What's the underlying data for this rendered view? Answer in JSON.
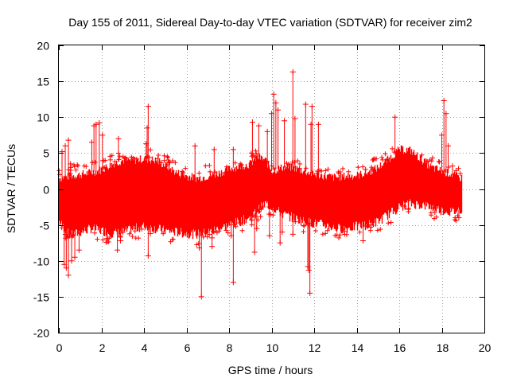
{
  "chart_data": {
    "type": "scatter",
    "title": "Day 155 of 2011, Sidereal Day-to-day VTEC variation (SDTVAR) for receiver zim2",
    "xlabel": "GPS time / hours",
    "ylabel": "SDTVAR / TECUs",
    "xlim": [
      0,
      20
    ],
    "ylim": [
      -20,
      20
    ],
    "xticks": [
      "0",
      "2",
      "4",
      "6",
      "8",
      "10",
      "12",
      "14",
      "16",
      "18",
      "20"
    ],
    "yticks": [
      "20",
      "15",
      "10",
      "5",
      "0",
      "-5",
      "-10",
      "-15",
      "-20"
    ],
    "grid": true,
    "marker": "+",
    "color": "#ff0000",
    "band": {
      "x": [
        0,
        0.5,
        1,
        1.5,
        2,
        2.5,
        3,
        3.5,
        4,
        4.5,
        5,
        5.5,
        6,
        6.5,
        7,
        7.5,
        8,
        8.5,
        9,
        9.3,
        9.7,
        10,
        10.5,
        11,
        11.5,
        12,
        12.5,
        13,
        13.5,
        14,
        14.5,
        15,
        15.5,
        16,
        16.5,
        17,
        17.5,
        18,
        18.5,
        18.9
      ],
      "upper": [
        1.5,
        1.8,
        2.0,
        2.3,
        2.7,
        3.5,
        4.0,
        4.0,
        4.2,
        4.0,
        3.3,
        2.3,
        1.8,
        1.5,
        1.8,
        2.2,
        2.8,
        3.2,
        3.5,
        4.5,
        4.0,
        2.5,
        3.0,
        3.0,
        2.5,
        2.0,
        1.8,
        1.6,
        1.8,
        1.9,
        2.3,
        3.0,
        4.2,
        5.5,
        5.4,
        4.2,
        3.0,
        2.5,
        2.0,
        1.5
      ],
      "lower": [
        -4.5,
        -6.5,
        -6.0,
        -5.5,
        -5.8,
        -6.2,
        -6.0,
        -5.5,
        -5.2,
        -5.5,
        -5.8,
        -6.0,
        -6.2,
        -6.3,
        -6.0,
        -5.5,
        -5.0,
        -4.5,
        -4.0,
        -3.0,
        -2.0,
        -2.5,
        -3.5,
        -4.0,
        -4.5,
        -4.8,
        -5.0,
        -5.5,
        -5.5,
        -5.2,
        -5.0,
        -4.5,
        -3.5,
        -2.5,
        -2.0,
        -2.2,
        -2.5,
        -3.0,
        -3.2,
        -2.8
      ]
    },
    "outliers": [
      {
        "x": 0.15,
        "y": 5.2
      },
      {
        "x": 0.3,
        "y": 6.0
      },
      {
        "x": 0.45,
        "y": 6.8
      },
      {
        "x": 0.55,
        "y": 3.5
      },
      {
        "x": 0.25,
        "y": -10.5
      },
      {
        "x": 0.35,
        "y": -11.0
      },
      {
        "x": 0.45,
        "y": -12.0
      },
      {
        "x": 0.6,
        "y": -10.0
      },
      {
        "x": 0.75,
        "y": -9.5
      },
      {
        "x": 0.95,
        "y": -8.5
      },
      {
        "x": 1.65,
        "y": 8.8
      },
      {
        "x": 1.75,
        "y": 9.0
      },
      {
        "x": 1.9,
        "y": 9.2
      },
      {
        "x": 1.55,
        "y": 6.5
      },
      {
        "x": 2.05,
        "y": 7.5
      },
      {
        "x": 2.8,
        "y": 7.0
      },
      {
        "x": 2.75,
        "y": -8.5
      },
      {
        "x": 2.9,
        "y": -7.2
      },
      {
        "x": 4.1,
        "y": 6.3
      },
      {
        "x": 4.15,
        "y": 8.5
      },
      {
        "x": 4.2,
        "y": 11.5
      },
      {
        "x": 4.2,
        "y": -9.3
      },
      {
        "x": 4.3,
        "y": -6.2
      },
      {
        "x": 6.4,
        "y": 6.0
      },
      {
        "x": 6.6,
        "y": -8.2
      },
      {
        "x": 6.7,
        "y": -15.0
      },
      {
        "x": 7.2,
        "y": -6.8
      },
      {
        "x": 7.3,
        "y": 5.5
      },
      {
        "x": 7.2,
        "y": -8.0
      },
      {
        "x": 8.1,
        "y": -6.5
      },
      {
        "x": 8.2,
        "y": -13.0
      },
      {
        "x": 8.2,
        "y": 5.5
      },
      {
        "x": 9.1,
        "y": 9.3
      },
      {
        "x": 9.2,
        "y": -8.8
      },
      {
        "x": 9.4,
        "y": 8.8
      },
      {
        "x": 9.3,
        "y": -5.5
      },
      {
        "x": 9.8,
        "y": 8.0
      },
      {
        "x": 9.9,
        "y": -6.5
      },
      {
        "x": 10.0,
        "y": 10.5
      },
      {
        "x": 10.1,
        "y": 13.2
      },
      {
        "x": 10.2,
        "y": 12.0
      },
      {
        "x": 10.3,
        "y": 11.0
      },
      {
        "x": 10.4,
        "y": -7.5
      },
      {
        "x": 10.5,
        "y": -6.0
      },
      {
        "x": 10.6,
        "y": 9.5
      },
      {
        "x": 11.0,
        "y": 16.3
      },
      {
        "x": 11.1,
        "y": 9.8
      },
      {
        "x": 11.0,
        "y": -6.3
      },
      {
        "x": 11.6,
        "y": 11.8
      },
      {
        "x": 11.7,
        "y": -10.8
      },
      {
        "x": 11.75,
        "y": -11.3
      },
      {
        "x": 11.8,
        "y": -14.5
      },
      {
        "x": 11.85,
        "y": 9.0
      },
      {
        "x": 11.9,
        "y": 11.5
      },
      {
        "x": 12.2,
        "y": 9.0
      },
      {
        "x": 14.3,
        "y": -7.2
      },
      {
        "x": 15.8,
        "y": 10.0
      },
      {
        "x": 18.0,
        "y": 7.5
      },
      {
        "x": 18.1,
        "y": 12.3
      },
      {
        "x": 18.2,
        "y": 10.5
      },
      {
        "x": 18.3,
        "y": 6.0
      },
      {
        "x": 18.5,
        "y": 3.2
      },
      {
        "x": 18.8,
        "y": -4.0
      }
    ]
  }
}
